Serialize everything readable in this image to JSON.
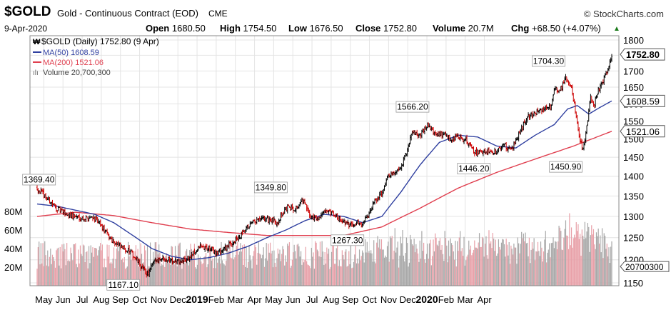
{
  "header": {
    "symbol": "$GOLD",
    "description": "Gold - Continuous Contract (EOD)",
    "exchange": "CME",
    "brand": "© StockCharts.com",
    "date": "9-Apr-2020",
    "quote": {
      "open_label": "Open",
      "open": "1680.50",
      "high_label": "High",
      "high": "1754.50",
      "low_label": "Low",
      "low": "1676.50",
      "close_label": "Close",
      "close": "1752.80",
      "volume_label": "Volume",
      "volume": "20.7M",
      "chg_label": "Chg",
      "chg": "+68.50 (+4.07%)",
      "arrow": "▲"
    }
  },
  "legend": {
    "price": "$GOLD (Daily) 1752.80 (9 Apr)",
    "ma50": "MA(50) 1608.59",
    "ma200": "MA(200) 1521.06",
    "volume": "Volume 20,700,300"
  },
  "colors": {
    "up": "#000000",
    "down": "#cc0000",
    "ma50": "#3040a0",
    "ma200": "#e04050",
    "vol_up": "#a8a8a8",
    "vol_down": "#e8a0a8",
    "grid": "#e4e4e4"
  },
  "chart_data": {
    "type": "candlestick-with-volume",
    "x_axis": {
      "labels": [
        "May",
        "Jun",
        "Jul",
        "Aug",
        "Sep",
        "Oct",
        "Nov",
        "Dec",
        "2019",
        "Feb",
        "Mar",
        "Apr",
        "May",
        "Jun",
        "Jul",
        "Aug",
        "Sep",
        "Oct",
        "Nov",
        "Dec",
        "2020",
        "Feb",
        "Mar",
        "Apr"
      ],
      "bold_labels": [
        "2019",
        "2020"
      ]
    },
    "price_axis": {
      "ticks": [
        1150,
        1200,
        1250,
        1300,
        1350,
        1400,
        1450,
        1500,
        1550,
        1600,
        1650,
        1700,
        1750,
        1800
      ],
      "range": [
        1150,
        1800
      ],
      "scale": "log"
    },
    "volume_axis": {
      "ticks": [
        "20M",
        "40M",
        "60M",
        "80M"
      ],
      "values": [
        20,
        40,
        60,
        80
      ],
      "range_millions": [
        0,
        100
      ]
    },
    "current_tags": [
      {
        "label": "1752.80",
        "value": 1752.8,
        "bold": true
      },
      {
        "label": "1608.59",
        "value": 1608.59,
        "bold": false
      },
      {
        "label": "1521.06",
        "value": 1521.06,
        "bold": false
      }
    ],
    "volume_tag": "20700300",
    "annotations": [
      {
        "label": "1369.40",
        "month": 0.1,
        "value": 1369.4
      },
      {
        "label": "1167.10",
        "month": 4.5,
        "value": 1167.1
      },
      {
        "label": "1349.80",
        "month": 12.2,
        "value": 1349.8
      },
      {
        "label": "1267.30",
        "month": 16.2,
        "value": 1267.3
      },
      {
        "label": "1566.20",
        "month": 19.6,
        "value": 1566.2
      },
      {
        "label": "1446.20",
        "month": 22.8,
        "value": 1446.2
      },
      {
        "label": "1704.30",
        "month": 26.7,
        "value": 1704.3
      },
      {
        "label": "1450.90",
        "month": 27.6,
        "value": 1450.9
      }
    ],
    "price_path": [
      [
        0.0,
        1370
      ],
      [
        0.5,
        1345
      ],
      [
        1.0,
        1320
      ],
      [
        1.5,
        1305
      ],
      [
        2.0,
        1300
      ],
      [
        2.5,
        1295
      ],
      [
        2.9,
        1300
      ],
      [
        3.3,
        1280
      ],
      [
        3.8,
        1250
      ],
      [
        4.3,
        1230
      ],
      [
        4.8,
        1220
      ],
      [
        5.2,
        1200
      ],
      [
        5.5,
        1180
      ],
      [
        5.8,
        1168
      ],
      [
        6.1,
        1195
      ],
      [
        6.5,
        1205
      ],
      [
        7.0,
        1200
      ],
      [
        7.5,
        1195
      ],
      [
        8.0,
        1205
      ],
      [
        8.5,
        1230
      ],
      [
        9.0,
        1225
      ],
      [
        9.4,
        1215
      ],
      [
        9.8,
        1225
      ],
      [
        10.2,
        1240
      ],
      [
        10.6,
        1250
      ],
      [
        11.0,
        1275
      ],
      [
        11.5,
        1290
      ],
      [
        12.0,
        1295
      ],
      [
        12.5,
        1285
      ],
      [
        13.0,
        1320
      ],
      [
        13.5,
        1320
      ],
      [
        13.9,
        1340
      ],
      [
        14.2,
        1302
      ],
      [
        14.6,
        1295
      ],
      [
        15.0,
        1310
      ],
      [
        15.4,
        1305
      ],
      [
        15.8,
        1295
      ],
      [
        16.2,
        1280
      ],
      [
        16.6,
        1285
      ],
      [
        17.0,
        1282
      ],
      [
        17.3,
        1300
      ],
      [
        17.5,
        1325
      ],
      [
        17.8,
        1345
      ],
      [
        18.0,
        1360
      ],
      [
        18.3,
        1400
      ],
      [
        18.6,
        1410
      ],
      [
        19.0,
        1425
      ],
      [
        19.3,
        1465
      ],
      [
        19.6,
        1525
      ],
      [
        20.0,
        1510
      ],
      [
        20.4,
        1540
      ],
      [
        20.8,
        1510
      ],
      [
        21.2,
        1515
      ],
      [
        21.6,
        1500
      ],
      [
        22.0,
        1505
      ],
      [
        22.4,
        1495
      ],
      [
        22.8,
        1465
      ],
      [
        23.2,
        1460
      ],
      [
        23.6,
        1470
      ],
      [
        24.0,
        1465
      ],
      [
        24.4,
        1480
      ],
      [
        24.8,
        1475
      ],
      [
        25.2,
        1520
      ],
      [
        25.6,
        1560
      ],
      [
        26.0,
        1570
      ],
      [
        26.4,
        1580
      ],
      [
        26.8,
        1590
      ],
      [
        27.0,
        1650
      ],
      [
        27.3,
        1640
      ],
      [
        27.6,
        1680
      ],
      [
        27.9,
        1640
      ],
      [
        28.1,
        1580
      ],
      [
        28.3,
        1500
      ],
      [
        28.5,
        1470
      ],
      [
        28.7,
        1530
      ],
      [
        28.9,
        1620
      ],
      [
        29.1,
        1600
      ],
      [
        29.3,
        1640
      ],
      [
        29.5,
        1660
      ],
      [
        29.8,
        1710
      ],
      [
        30.0,
        1752.8
      ]
    ],
    "ma50_path": [
      [
        0.0,
        1330
      ],
      [
        1.0,
        1325
      ],
      [
        2.0,
        1315
      ],
      [
        3.0,
        1305
      ],
      [
        4.0,
        1285
      ],
      [
        5.0,
        1255
      ],
      [
        6.0,
        1225
      ],
      [
        7.0,
        1208
      ],
      [
        8.0,
        1200
      ],
      [
        9.0,
        1205
      ],
      [
        10.0,
        1215
      ],
      [
        11.0,
        1230
      ],
      [
        12.0,
        1250
      ],
      [
        13.0,
        1268
      ],
      [
        14.0,
        1290
      ],
      [
        15.0,
        1305
      ],
      [
        16.0,
        1300
      ],
      [
        17.0,
        1285
      ],
      [
        18.0,
        1300
      ],
      [
        19.0,
        1360
      ],
      [
        20.0,
        1430
      ],
      [
        21.0,
        1490
      ],
      [
        22.0,
        1510
      ],
      [
        23.0,
        1505
      ],
      [
        24.0,
        1480
      ],
      [
        25.0,
        1475
      ],
      [
        26.0,
        1510
      ],
      [
        27.0,
        1540
      ],
      [
        27.7,
        1585
      ],
      [
        28.2,
        1595
      ],
      [
        28.8,
        1570
      ],
      [
        29.4,
        1590
      ],
      [
        30.0,
        1608.59
      ]
    ],
    "ma200_path": [
      [
        0.0,
        1300
      ],
      [
        2.0,
        1310
      ],
      [
        4.0,
        1302
      ],
      [
        6.0,
        1285
      ],
      [
        8.0,
        1270
      ],
      [
        10.0,
        1262
      ],
      [
        12.0,
        1255
      ],
      [
        14.0,
        1255
      ],
      [
        16.0,
        1255
      ],
      [
        18.0,
        1275
      ],
      [
        20.0,
        1320
      ],
      [
        22.0,
        1370
      ],
      [
        24.0,
        1410
      ],
      [
        26.0,
        1445
      ],
      [
        28.0,
        1480
      ],
      [
        30.0,
        1521.06
      ]
    ]
  }
}
